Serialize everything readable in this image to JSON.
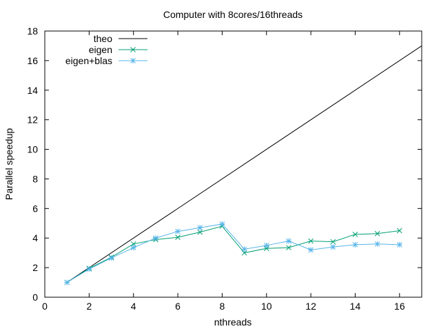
{
  "chart_data": {
    "type": "line",
    "title": "Computer with 8cores/16threads",
    "xlabel": "nthreads",
    "ylabel": "Parallel speedup",
    "xlim": [
      0,
      17
    ],
    "ylim": [
      0,
      18
    ],
    "xticks": [
      0,
      2,
      4,
      6,
      8,
      10,
      12,
      14,
      16
    ],
    "yticks": [
      0,
      2,
      4,
      6,
      8,
      10,
      12,
      14,
      16,
      18
    ],
    "grid": false,
    "legend_position": "top-left",
    "series": [
      {
        "name": "theo",
        "color": "#000000",
        "marker": "none",
        "x": [
          1,
          17
        ],
        "y": [
          1,
          17
        ]
      },
      {
        "name": "eigen",
        "color": "#009e73",
        "marker": "x",
        "x": [
          1,
          2,
          3,
          4,
          5,
          6,
          7,
          8,
          9,
          10,
          11,
          12,
          13,
          14,
          15,
          16
        ],
        "y": [
          1.0,
          1.95,
          2.7,
          3.6,
          3.9,
          4.05,
          4.4,
          4.8,
          3.0,
          3.3,
          3.35,
          3.8,
          3.75,
          4.25,
          4.3,
          4.5
        ]
      },
      {
        "name": "eigen+blas",
        "color": "#56b4e9",
        "marker": "asterisk",
        "x": [
          1,
          2,
          3,
          4,
          5,
          6,
          7,
          8,
          9,
          10,
          11,
          12,
          13,
          14,
          15,
          16
        ],
        "y": [
          1.0,
          1.9,
          2.65,
          3.35,
          4.0,
          4.45,
          4.7,
          4.95,
          3.25,
          3.5,
          3.8,
          3.2,
          3.4,
          3.55,
          3.6,
          3.55
        ]
      }
    ]
  }
}
